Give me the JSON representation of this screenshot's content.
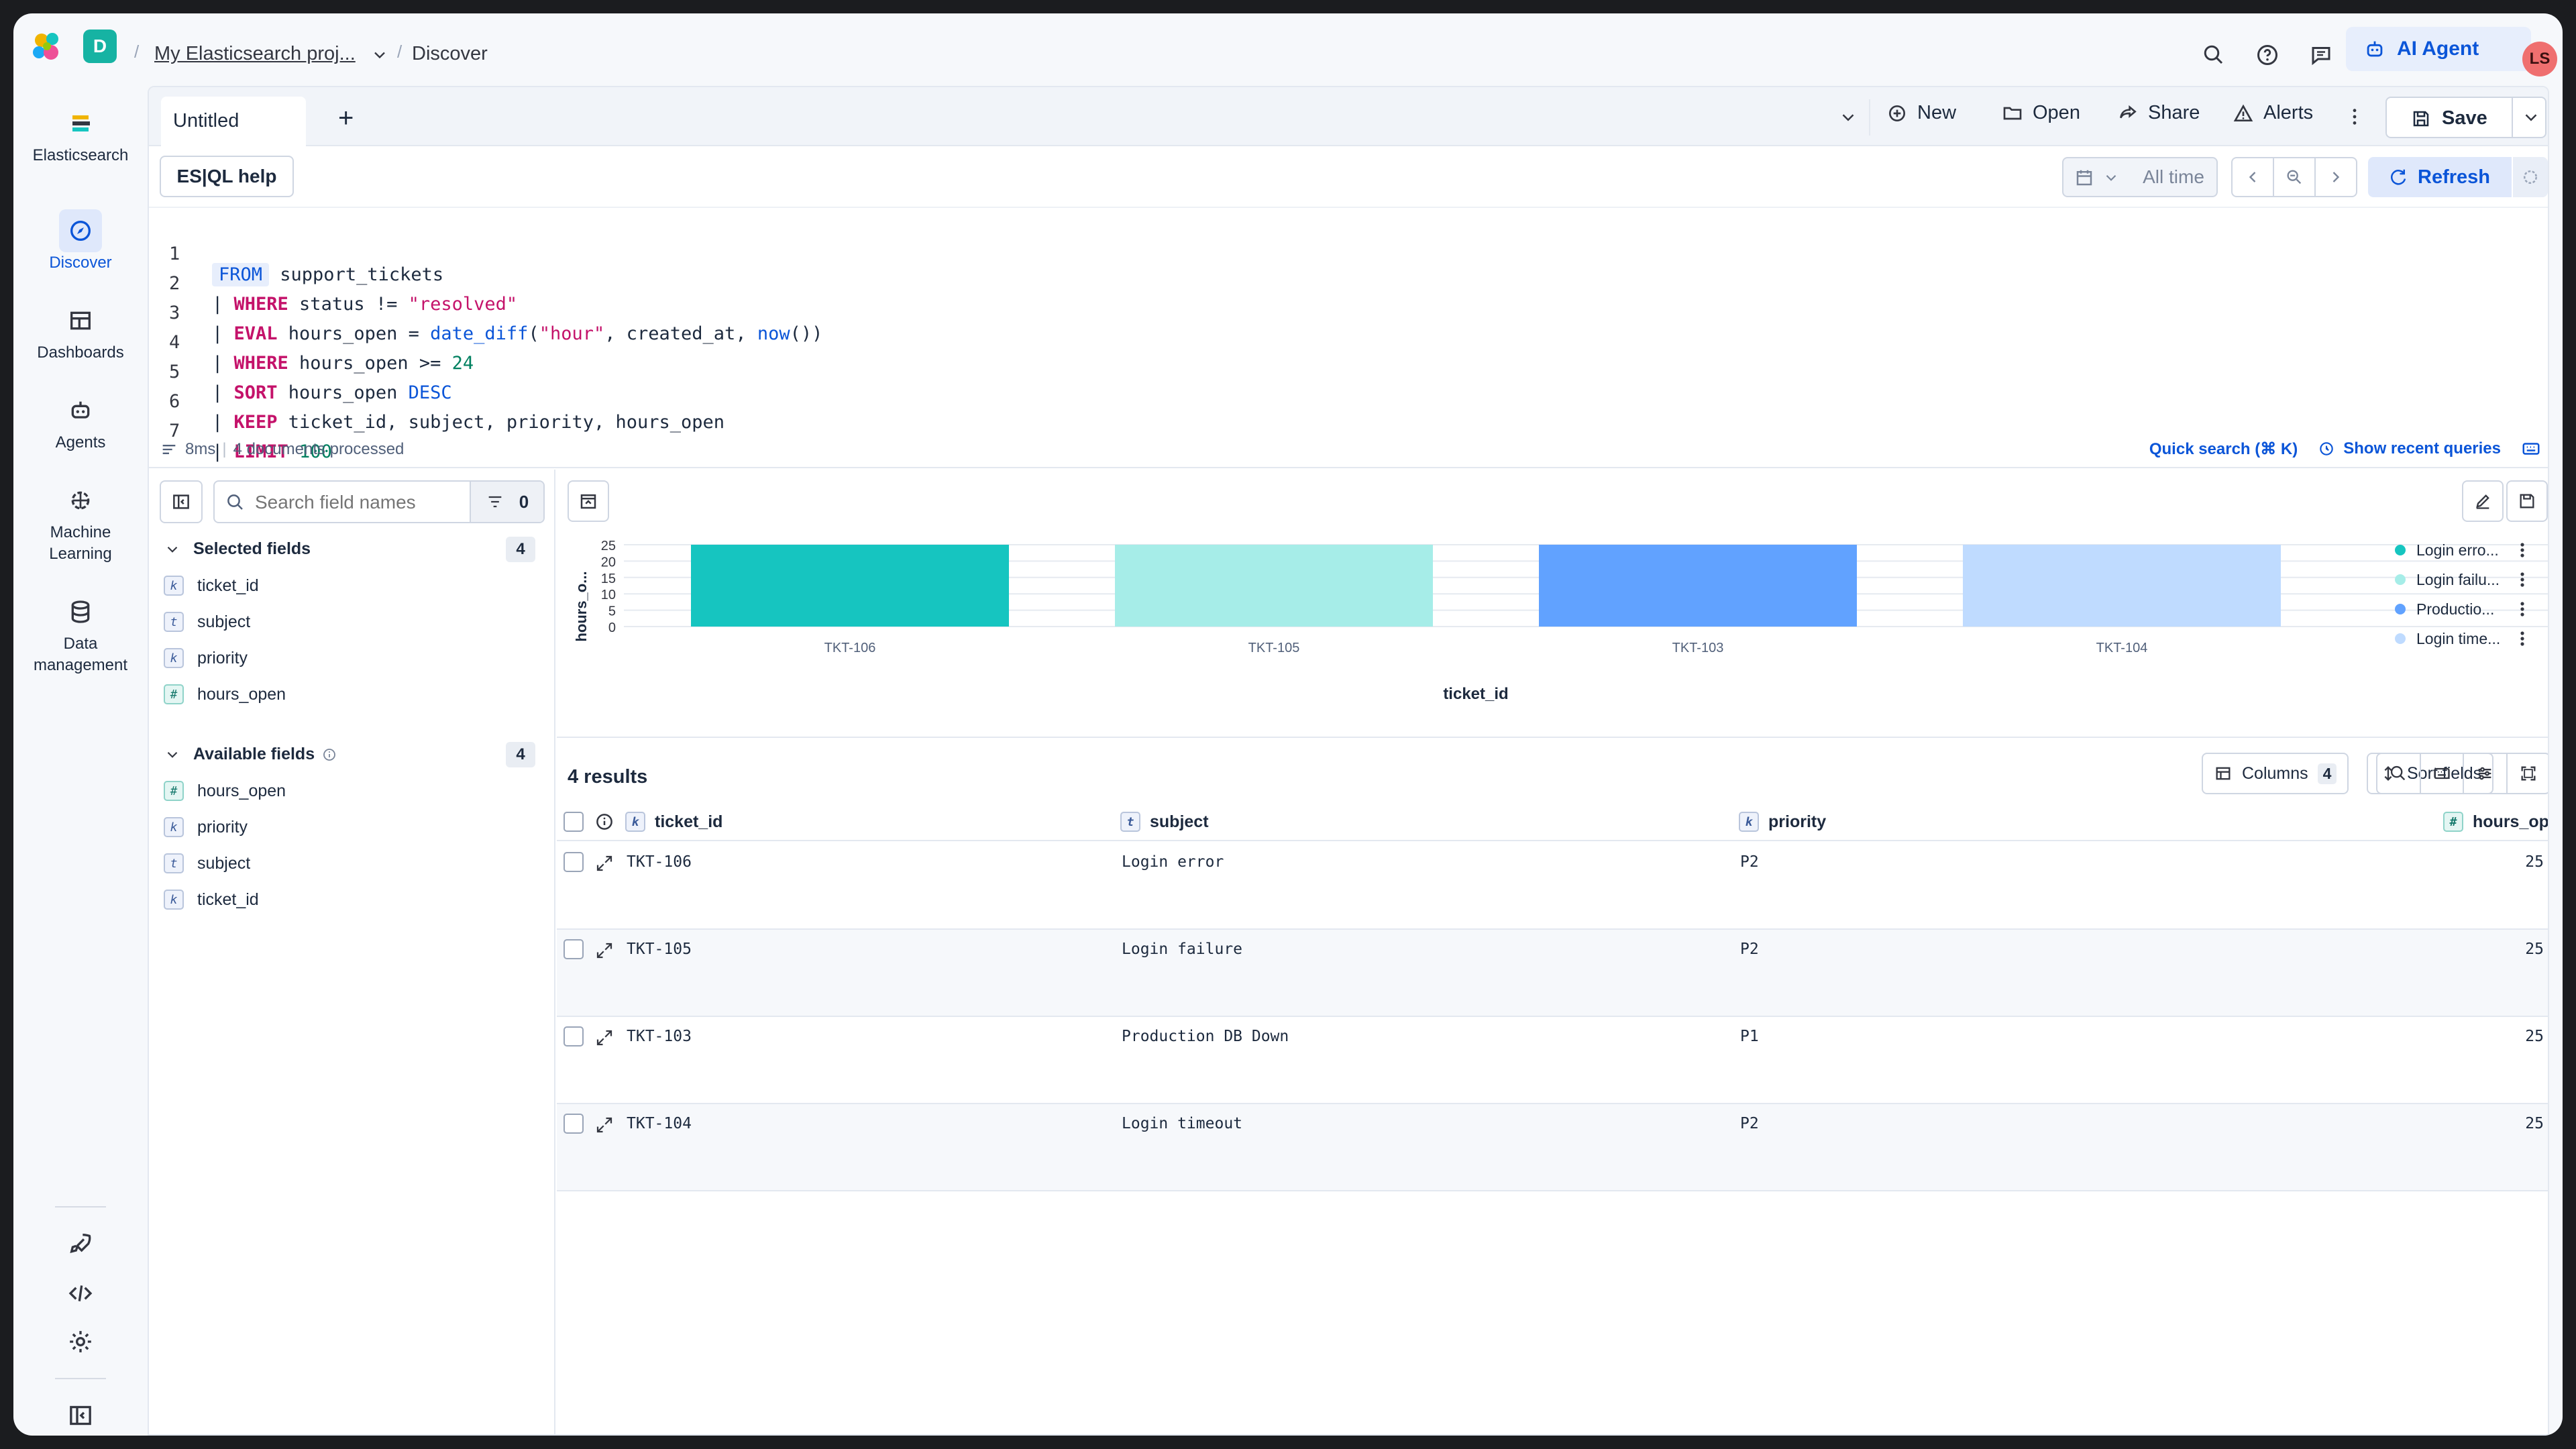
{
  "header": {
    "space_initial": "D",
    "breadcrumb_project": "My Elasticsearch proj...",
    "breadcrumb_current": "Discover",
    "ai_agent_label": "AI Agent",
    "avatar_initials": "LS"
  },
  "nav": {
    "brand": "Elasticsearch",
    "items": [
      {
        "label": "Discover",
        "icon": "compass-icon",
        "active": true
      },
      {
        "label": "Dashboards",
        "icon": "dashboard-icon"
      },
      {
        "label": "Agents",
        "icon": "robot-icon"
      },
      {
        "label": "Machine Learning",
        "icon": "ml-icon"
      },
      {
        "label": "Data management",
        "icon": "database-icon"
      }
    ],
    "bottom_icons": [
      "rocket-icon",
      "code-icon",
      "gear-icon",
      "collapse-nav-icon"
    ]
  },
  "tabs": {
    "active_tab": "Untitled",
    "actions": {
      "new": "New",
      "open": "Open",
      "share": "Share",
      "alerts": "Alerts",
      "save": "Save"
    }
  },
  "query_bar": {
    "help_label": "ES|QL help",
    "time_label": "All time",
    "refresh_label": "Refresh"
  },
  "editor": {
    "line_numbers": [
      "1",
      "2",
      "3",
      "4",
      "5",
      "6",
      "7"
    ],
    "line1": {
      "kw": "FROM",
      "rest": " support_tickets"
    },
    "line2": {
      "pipe": "| ",
      "kw": "WHERE",
      "a": " status != ",
      "str": "\"resolved\""
    },
    "line3": {
      "pipe": "| ",
      "kw": "EVAL",
      "a": " hours_open = ",
      "fn": "date_diff",
      "b": "(",
      "str": "\"hour\"",
      "c": ", created_at, ",
      "fn2": "now",
      "d": "())"
    },
    "line4": {
      "pipe": "| ",
      "kw": "WHERE",
      "a": " hours_open >= ",
      "num": "24"
    },
    "line5": {
      "pipe": "| ",
      "kw": "SORT",
      "a": " hours_open ",
      "fn": "DESC"
    },
    "line6": {
      "pipe": "| ",
      "kw": "KEEP",
      "a": " ticket_id, subject, priority, hours_open"
    },
    "line7": {
      "pipe": "| ",
      "kw": "LIMIT",
      "num": " 100"
    },
    "footer_time": "8ms",
    "footer_docs": "4 documents processed",
    "quick_search": "Quick search (⌘ K)",
    "recent_queries": "Show recent queries"
  },
  "sidebar": {
    "search_placeholder": "Search field names",
    "filter_count": "0",
    "selected_title": "Selected fields",
    "selected_count": "4",
    "selected_fields": [
      {
        "name": "ticket_id",
        "type": "k"
      },
      {
        "name": "subject",
        "type": "t"
      },
      {
        "name": "priority",
        "type": "k"
      },
      {
        "name": "hours_open",
        "type": "#"
      }
    ],
    "available_title": "Available fields",
    "available_count": "4",
    "available_fields": [
      {
        "name": "hours_open",
        "type": "#"
      },
      {
        "name": "priority",
        "type": "k"
      },
      {
        "name": "subject",
        "type": "t"
      },
      {
        "name": "ticket_id",
        "type": "k"
      }
    ]
  },
  "chart_data": {
    "type": "bar",
    "categories": [
      "TKT-106",
      "TKT-105",
      "TKT-103",
      "TKT-104"
    ],
    "values": [
      25,
      25,
      25,
      25
    ],
    "colors": [
      "#16c5c0",
      "#a6ede8",
      "#61a2ff",
      "#bfdbff"
    ],
    "ylabel": "hours_o...",
    "xlabel": "ticket_id",
    "ylim": [
      0,
      25
    ],
    "yticks": [
      0,
      5,
      10,
      15,
      20,
      25
    ],
    "legend": [
      "Login erro...",
      "Login failu...",
      "Productio...",
      "Login time..."
    ],
    "legend_position": "right"
  },
  "results": {
    "count_label": "4 results",
    "columns_label": "Columns",
    "columns_count": "4",
    "sort_label": "Sort fields",
    "headers": [
      {
        "type": "k",
        "label": "ticket_id"
      },
      {
        "type": "t",
        "label": "subject"
      },
      {
        "type": "k",
        "label": "priority"
      },
      {
        "type": "#",
        "label": "hours_open"
      }
    ],
    "rows": [
      {
        "ticket_id": "TKT-106",
        "subject": "Login error",
        "priority": "P2",
        "hours_open": "25"
      },
      {
        "ticket_id": "TKT-105",
        "subject": "Login failure",
        "priority": "P2",
        "hours_open": "25"
      },
      {
        "ticket_id": "TKT-103",
        "subject": "Production DB Down",
        "priority": "P1",
        "hours_open": "25"
      },
      {
        "ticket_id": "TKT-104",
        "subject": "Login timeout",
        "priority": "P2",
        "hours_open": "25"
      }
    ]
  }
}
